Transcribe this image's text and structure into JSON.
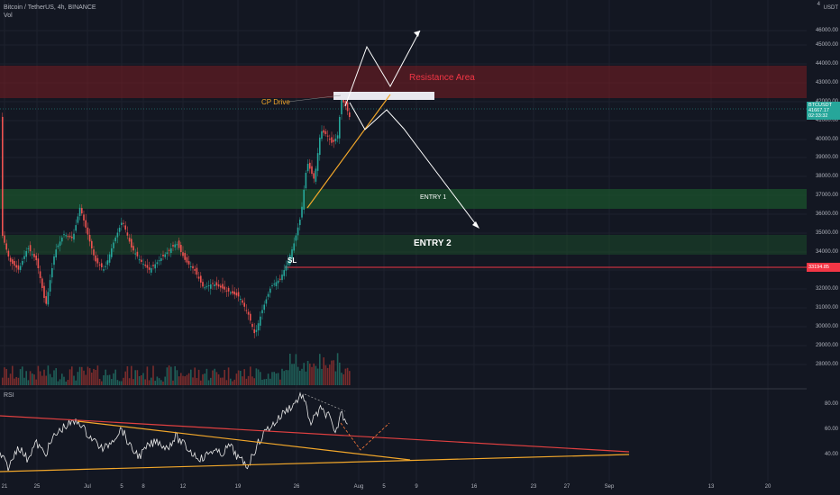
{
  "header": {
    "symbol": "Bitcoin / TetherUS, 4h, BINANCE",
    "volume_label": "Vol"
  },
  "axis": {
    "currency": "USDT",
    "top_partial": "4",
    "price_labels": [
      "46000.00",
      "45000.00",
      "44000.00",
      "43000.00",
      "42000.00",
      "41000.00",
      "40000.00",
      "39000.00",
      "38000.00",
      "37000.00",
      "36000.00",
      "35000.00",
      "34000.00",
      "33000.00",
      "32000.00",
      "31000.00",
      "30000.00",
      "29000.00",
      "28000.00"
    ],
    "rsi_labels": [
      "80.00",
      "60.00",
      "40.00"
    ],
    "date_labels": [
      "21",
      "25",
      "Jul",
      "5",
      "8",
      "12",
      "19",
      "26",
      "Aug",
      "5",
      "9",
      "16",
      "23",
      "27",
      "Sep",
      "13",
      "20"
    ]
  },
  "price_tag": {
    "symbol": "BTCUSDT",
    "price": "41667.17",
    "countdown": "02:33:32",
    "color": "#26a69a"
  },
  "sl_tag": {
    "price": "33194.85",
    "color": "#f23645"
  },
  "annotations": {
    "resistance": "Resistance Area",
    "cp_drive": "CP Drive",
    "entry1": "ENTRY 1",
    "entry2": "ENTRY 2",
    "sl": "SL"
  },
  "rsi": {
    "label": "RSI"
  },
  "colors": {
    "background": "#131722",
    "up": "#26a69a",
    "down": "#ef5350",
    "resistance_zone": "#7a1e22",
    "entry_zone": "#1c4a2a",
    "trendline_orange": "#f2a72a",
    "trendline_red": "#e04040"
  }
}
